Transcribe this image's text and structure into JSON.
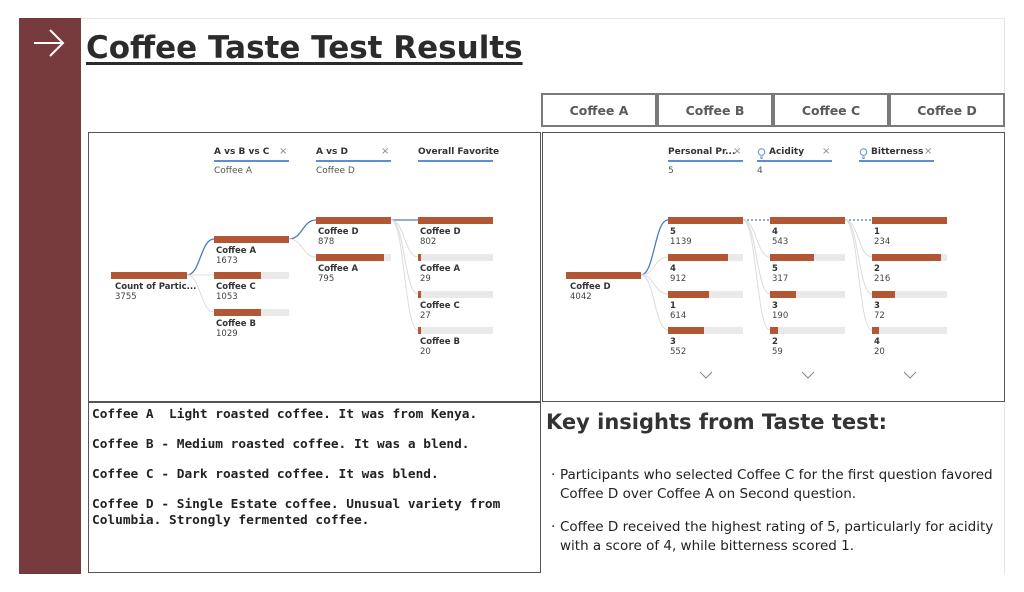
{
  "page": {
    "title": "Coffee Taste Test Results"
  },
  "colors": {
    "sidebar": "#773a3d",
    "bar": "#b35634",
    "accent_line": "#5b8fd4"
  },
  "tabs": [
    {
      "label": "Coffee A"
    },
    {
      "label": "Coffee B"
    },
    {
      "label": "Coffee C"
    },
    {
      "label": "Coffee D"
    }
  ],
  "left_tree": {
    "columns": [
      {
        "header": "A vs B vs C",
        "selected": "Coffee A"
      },
      {
        "header": "A vs D",
        "selected": "Coffee D"
      },
      {
        "header": "Overall Favorite",
        "selected": ""
      }
    ],
    "root": {
      "label": "Count of Partic...",
      "value": "3755"
    },
    "level1": [
      {
        "label": "Coffee A",
        "value": "1673",
        "fraction": 1.0
      },
      {
        "label": "Coffee C",
        "value": "1053",
        "fraction": 0.63
      },
      {
        "label": "Coffee B",
        "value": "1029",
        "fraction": 0.62
      }
    ],
    "level2": [
      {
        "label": "Coffee D",
        "value": "878",
        "fraction": 1.0
      },
      {
        "label": "Coffee A",
        "value": "795",
        "fraction": 0.91
      }
    ],
    "level3": [
      {
        "label": "Coffee D",
        "value": "802",
        "fraction": 1.0
      },
      {
        "label": "Coffee A",
        "value": "29",
        "fraction": 0.04
      },
      {
        "label": "Coffee C",
        "value": "27",
        "fraction": 0.04
      },
      {
        "label": "Coffee B",
        "value": "20",
        "fraction": 0.03
      }
    ]
  },
  "right_tree": {
    "columns": [
      {
        "header": "Personal Pr...",
        "selected": "5",
        "icon": ""
      },
      {
        "header": "Acidity",
        "selected": "4",
        "icon": "bulb-icon"
      },
      {
        "header": "Bitterness",
        "selected": "",
        "icon": "bulb-icon"
      }
    ],
    "root": {
      "label": "Coffee D",
      "value": "4042"
    },
    "level1": [
      {
        "label": "5",
        "value": "1139",
        "fraction": 1.0
      },
      {
        "label": "4",
        "value": "912",
        "fraction": 0.8
      },
      {
        "label": "1",
        "value": "614",
        "fraction": 0.54
      },
      {
        "label": "3",
        "value": "552",
        "fraction": 0.48
      }
    ],
    "level2": [
      {
        "label": "4",
        "value": "543",
        "fraction": 1.0
      },
      {
        "label": "5",
        "value": "317",
        "fraction": 0.58
      },
      {
        "label": "3",
        "value": "190",
        "fraction": 0.35
      },
      {
        "label": "2",
        "value": "59",
        "fraction": 0.11
      }
    ],
    "level3": [
      {
        "label": "1",
        "value": "234",
        "fraction": 1.0
      },
      {
        "label": "2",
        "value": "216",
        "fraction": 0.92
      },
      {
        "label": "3",
        "value": "72",
        "fraction": 0.31
      },
      {
        "label": "4",
        "value": "20",
        "fraction": 0.09
      }
    ]
  },
  "descriptions": [
    "Coffee A  Light roasted coffee. It was from Kenya.",
    "Coffee B - Medium roasted coffee. It was a blend.",
    "Coffee C - Dark roasted coffee. It was blend.",
    "Coffee D - Single Estate coffee. Unusual variety from\nColumbia. Strongly fermented coffee."
  ],
  "insights": {
    "title": "Key insights from Taste test:",
    "bullets": [
      "Participants who selected Coffee C for the first question favored Coffee D over Coffee A on Second question.",
      "Coffee D received the highest rating of 5, particularly for acidity with a score of 4, while bitterness scored 1."
    ]
  }
}
